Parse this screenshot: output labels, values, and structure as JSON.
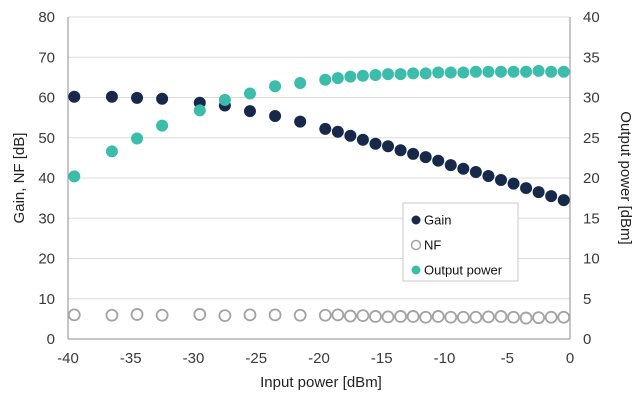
{
  "colors": {
    "gain": "#17294a",
    "nf": "#a3a3a3",
    "output_power": "#3cbcaa",
    "gridline": "#dcdcdc",
    "axis": "#8c8c8c"
  },
  "chart_data": {
    "type": "scatter",
    "xlabel": "Input power [dBm]",
    "ylabel": "Gain, NF [dB]",
    "ylabel_right": "Output power [dBm]",
    "xlim": [
      -40,
      0
    ],
    "ylim": [
      0,
      80
    ],
    "ylim_right": [
      0,
      40
    ],
    "x_ticks": [
      "-40",
      "-35",
      "-30",
      "-25",
      "-20",
      "-15",
      "-10",
      "-5",
      "0"
    ],
    "y_ticks": [
      "0",
      "10",
      "20",
      "30",
      "40",
      "50",
      "60",
      "70",
      "80"
    ],
    "y_right_ticks": [
      "0",
      "5",
      "10",
      "15",
      "20",
      "25",
      "30",
      "35",
      "40"
    ],
    "grid": "horizontal",
    "legend_position": "bottom-right",
    "series": [
      {
        "name": "Gain",
        "axis": "left",
        "marker": "filled",
        "x": [
          -39.5,
          -36.5,
          -34.5,
          -32.5,
          -29.5,
          -27.5,
          -25.5,
          -23.5,
          -21.5,
          -19.5,
          -18.5,
          -17.5,
          -16.5,
          -15.5,
          -14.5,
          -13.5,
          -12.5,
          -11.5,
          -10.5,
          -9.5,
          -8.5,
          -7.5,
          -6.5,
          -5.5,
          -4.5,
          -3.5,
          -2.5,
          -1.5,
          -0.5
        ],
        "y": [
          60.2,
          60.2,
          59.9,
          59.7,
          58.7,
          58.0,
          56.6,
          55.4,
          54.0,
          52.2,
          51.5,
          50.5,
          49.5,
          48.5,
          47.9,
          46.9,
          46.0,
          45.2,
          44.3,
          43.2,
          42.3,
          41.5,
          40.5,
          39.5,
          38.6,
          37.5,
          36.5,
          35.5,
          34.5
        ]
      },
      {
        "name": "NF",
        "axis": "left",
        "marker": "hollow",
        "x": [
          -39.5,
          -36.5,
          -34.5,
          -32.5,
          -29.5,
          -27.5,
          -25.5,
          -23.5,
          -21.5,
          -19.5,
          -18.5,
          -17.5,
          -16.5,
          -15.5,
          -14.5,
          -13.5,
          -12.5,
          -11.5,
          -10.5,
          -9.5,
          -8.5,
          -7.5,
          -6.5,
          -5.5,
          -4.5,
          -3.5,
          -2.5,
          -1.5,
          -0.5
        ],
        "y": [
          6.0,
          5.9,
          6.1,
          5.9,
          6.1,
          5.8,
          6.0,
          6.0,
          5.9,
          5.9,
          6.0,
          5.7,
          5.8,
          5.6,
          5.5,
          5.6,
          5.6,
          5.4,
          5.6,
          5.4,
          5.4,
          5.4,
          5.5,
          5.6,
          5.4,
          5.2,
          5.3,
          5.4,
          5.4
        ]
      },
      {
        "name": "Output power",
        "axis": "right",
        "marker": "filled",
        "x": [
          -39.5,
          -36.5,
          -34.5,
          -32.5,
          -29.5,
          -27.5,
          -25.5,
          -23.5,
          -21.5,
          -19.5,
          -18.5,
          -17.5,
          -16.5,
          -15.5,
          -14.5,
          -13.5,
          -12.5,
          -11.5,
          -10.5,
          -9.5,
          -8.5,
          -7.5,
          -6.5,
          -5.5,
          -4.5,
          -3.5,
          -2.5,
          -1.5,
          -0.5
        ],
        "y": [
          20.2,
          23.3,
          24.9,
          26.5,
          28.4,
          29.7,
          30.5,
          31.4,
          31.8,
          32.2,
          32.4,
          32.6,
          32.7,
          32.8,
          32.9,
          32.9,
          33.0,
          33.0,
          33.1,
          33.1,
          33.1,
          33.2,
          33.2,
          33.2,
          33.2,
          33.2,
          33.3,
          33.2,
          33.2
        ]
      }
    ]
  }
}
